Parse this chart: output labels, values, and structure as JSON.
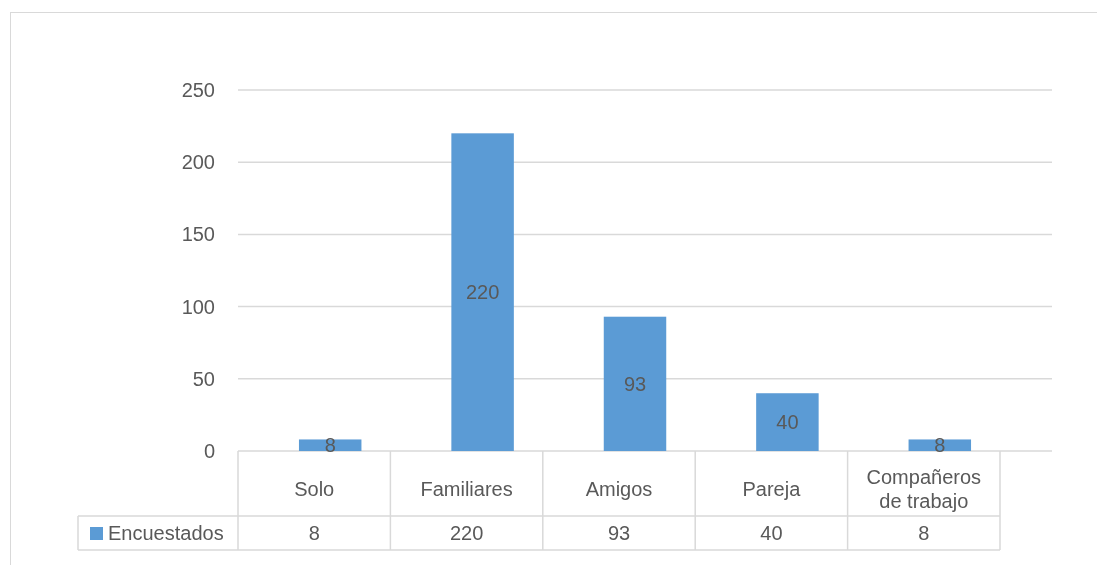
{
  "chart_data": {
    "type": "bar",
    "categories": [
      "Solo",
      "Familiares",
      "Amigos",
      "Pareja",
      "Compañeros de trabajo"
    ],
    "series": [
      {
        "name": "Encuestados",
        "color": "#5b9bd5",
        "values": [
          8,
          220,
          93,
          40,
          8
        ]
      }
    ],
    "ylim": [
      0,
      250
    ],
    "yticks": [
      0,
      50,
      100,
      150,
      200,
      250
    ],
    "grid": "y",
    "data_labels": true,
    "legend": "bottom",
    "annotations": [
      "8",
      "220",
      "93",
      "40",
      "8"
    ]
  }
}
